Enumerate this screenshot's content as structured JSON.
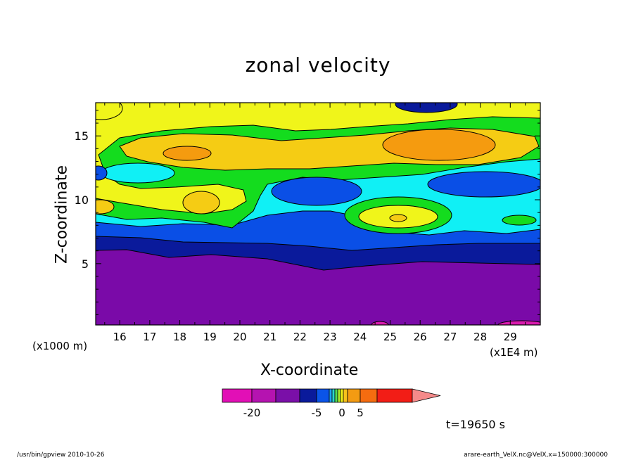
{
  "chart_data": {
    "type": "contour",
    "title": "zonal velocity",
    "xlabel": "X-coordinate",
    "ylabel": "Z-coordinate",
    "x_unit_label": "(x1000 m)",
    "x_scale_label": "(x1E4 m)",
    "time_label": "t=19650 s",
    "xlim": [
      15.2,
      30.0
    ],
    "ylim": [
      0.2,
      17.6
    ],
    "x_ticks": [
      "16",
      "17",
      "18",
      "19",
      "20",
      "21",
      "22",
      "23",
      "24",
      "25",
      "26",
      "27",
      "28",
      "29"
    ],
    "y_ticks": [
      "5",
      "10",
      "15"
    ],
    "x_tick_values": [
      16,
      17,
      18,
      19,
      20,
      21,
      22,
      23,
      24,
      25,
      26,
      27,
      28,
      29
    ],
    "y_tick_values": [
      5,
      10,
      15
    ],
    "colorbar": {
      "tick_labels": [
        "-20",
        "-5",
        "0",
        "5"
      ],
      "colors": [
        "#e20fb6",
        "#b513b0",
        "#7a0fa8",
        "#0a1a9b",
        "#0a54e8",
        "#1fa3f0",
        "#2bd4cf",
        "#4fde5a",
        "#a9ec2e",
        "#f4f21a",
        "#f7c21b",
        "#f39b12",
        "#f56c10",
        "#f21d16",
        "#f58a8a"
      ]
    },
    "palette": {
      "magenta": "#d91aae",
      "purple": "#7a0aa8",
      "navy": "#0a1a9b",
      "blue": "#0a4fe6",
      "cyan": "#10f0f5",
      "green": "#14dc1e",
      "yellow": "#f0f51a",
      "yelloworange": "#f5cc14",
      "orange": "#f59b0f"
    }
  },
  "footer": {
    "left": "/usr/bin/gpview   2010-10-26",
    "right": "arare-earth_VelX.nc@VelX,x=150000:300000"
  }
}
